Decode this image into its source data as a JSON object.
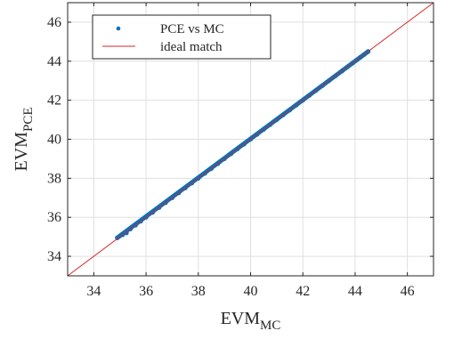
{
  "chart_data": {
    "type": "scatter",
    "title": "",
    "xlabel": {
      "main": "EVM",
      "sub": "MC"
    },
    "ylabel": {
      "main": "EVM",
      "sub": "PCE"
    },
    "xlim": [
      33,
      47
    ],
    "ylim": [
      33,
      47
    ],
    "xticks": [
      34,
      36,
      38,
      40,
      42,
      44,
      46
    ],
    "yticks": [
      34,
      36,
      38,
      40,
      42,
      44,
      46
    ],
    "grid": true,
    "legend_position": "top-left",
    "series": [
      {
        "name": "PCE vs MC",
        "kind": "points",
        "color": "#0072BD",
        "x": [
          34.9,
          35.0,
          35.1,
          35.25,
          35.4,
          35.6,
          35.8,
          36.0,
          36.25,
          36.5,
          36.75,
          37.0,
          37.25,
          37.5,
          37.75,
          38.0,
          38.25,
          38.5,
          38.75,
          39.0,
          39.25,
          39.5,
          39.75,
          40.0,
          40.25,
          40.5,
          40.75,
          41.0,
          41.25,
          41.5,
          41.75,
          42.0,
          42.25,
          42.5,
          42.75,
          43.0,
          43.25,
          43.5,
          43.7,
          43.9,
          44.05,
          44.2,
          44.35,
          44.5
        ],
        "y": [
          34.95,
          35.05,
          35.1,
          35.2,
          35.4,
          35.6,
          35.8,
          36.0,
          36.25,
          36.5,
          36.75,
          37.0,
          37.25,
          37.5,
          37.75,
          38.0,
          38.25,
          38.5,
          38.75,
          39.0,
          39.25,
          39.5,
          39.75,
          40.0,
          40.25,
          40.5,
          40.75,
          41.0,
          41.25,
          41.5,
          41.75,
          42.0,
          42.25,
          42.5,
          42.75,
          43.0,
          43.25,
          43.5,
          43.7,
          43.9,
          44.05,
          44.2,
          44.35,
          44.5
        ]
      },
      {
        "name": "ideal match",
        "kind": "line",
        "color": "#D62728",
        "x": [
          33,
          47
        ],
        "y": [
          33,
          47
        ]
      }
    ]
  }
}
